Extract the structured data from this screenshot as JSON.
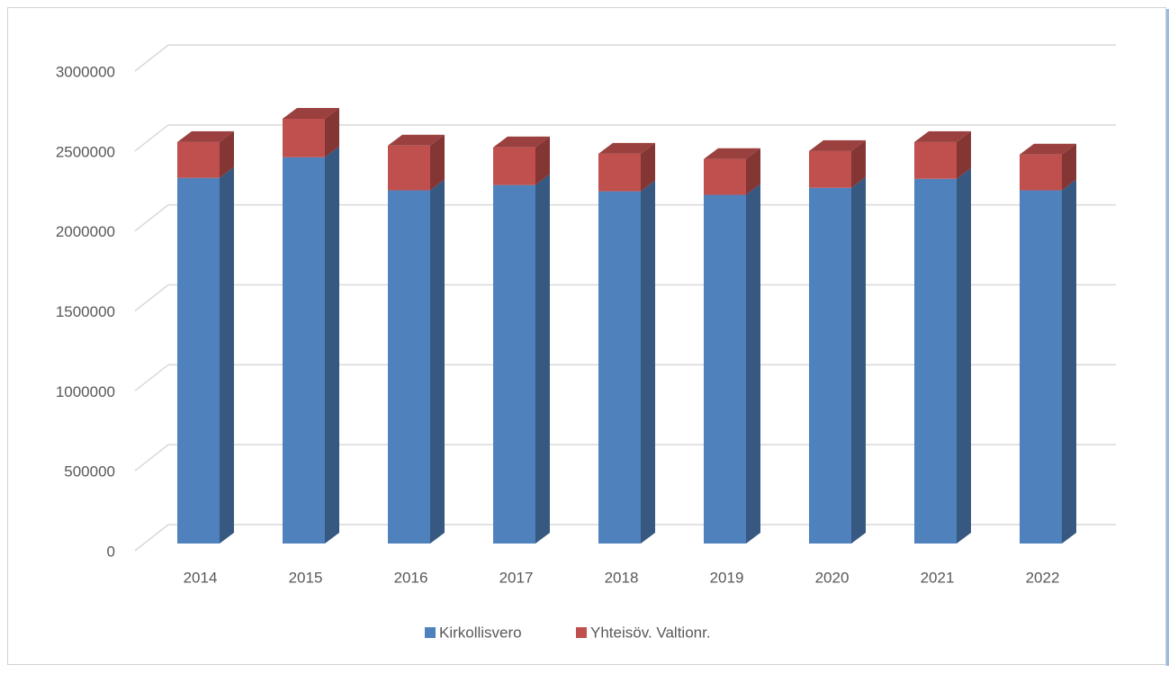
{
  "chart_data": {
    "type": "bar3d-stacked",
    "categories": [
      "2014",
      "2015",
      "2016",
      "2017",
      "2018",
      "2019",
      "2020",
      "2021",
      "2022"
    ],
    "series": [
      {
        "name": "Kirkollisvero",
        "color": "#4f81bd",
        "values": [
          2287000,
          2416000,
          2209000,
          2242000,
          2203000,
          2181000,
          2225000,
          2281000,
          2209000
        ]
      },
      {
        "name": "Yhteisöv. Valtionr.",
        "color": "#c0504d",
        "values": [
          224000,
          241000,
          280000,
          236000,
          235000,
          224000,
          230000,
          230000,
          224000
        ]
      }
    ],
    "ylim": [
      0,
      3000000
    ],
    "yticks": [
      0,
      500000,
      1000000,
      1500000,
      2000000,
      2500000,
      3000000
    ],
    "grid": true,
    "legend": "bottom"
  }
}
